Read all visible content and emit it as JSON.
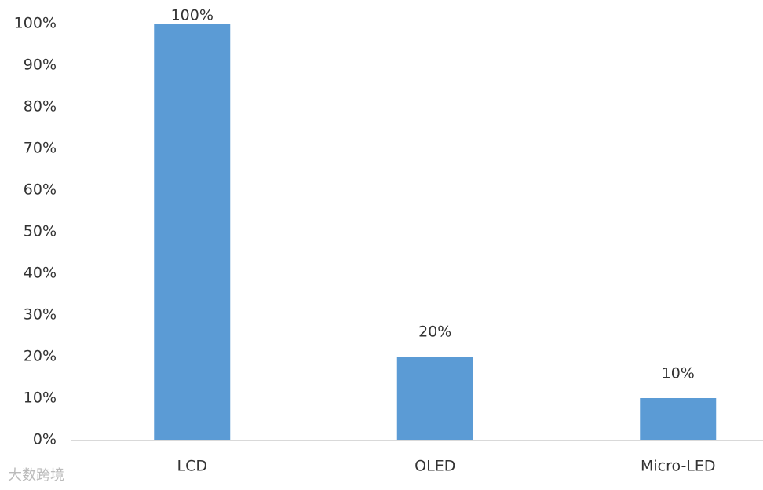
{
  "chart_data": {
    "type": "bar",
    "categories": [
      "LCD",
      "OLED",
      "Micro-LED"
    ],
    "values": [
      100,
      20,
      10
    ],
    "value_labels": [
      "100%",
      "20%",
      "10%"
    ],
    "color": "#5b9bd5",
    "ylim": [
      0,
      100
    ],
    "yticks": [
      {
        "value": 0,
        "label": "0%"
      },
      {
        "value": 10,
        "label": "10%"
      },
      {
        "value": 20,
        "label": "20%"
      },
      {
        "value": 30,
        "label": "30%"
      },
      {
        "value": 40,
        "label": "40%"
      },
      {
        "value": 50,
        "label": "50%"
      },
      {
        "value": 60,
        "label": "60%"
      },
      {
        "value": 70,
        "label": "70%"
      },
      {
        "value": 80,
        "label": "80%"
      },
      {
        "value": 90,
        "label": "90%"
      },
      {
        "value": 100,
        "label": "100%"
      }
    ],
    "grid": false,
    "watermark": "大数跨境"
  }
}
